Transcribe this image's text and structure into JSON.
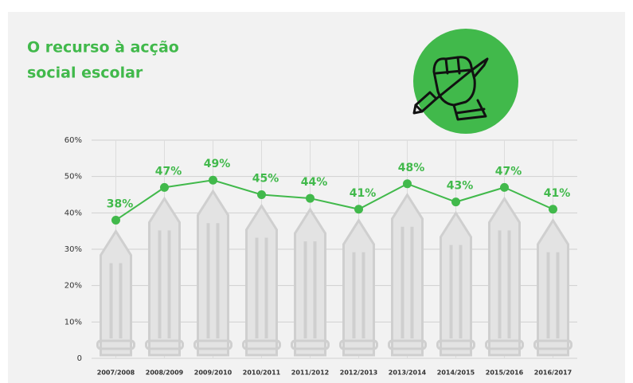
{
  "chart_data": {
    "type": "line",
    "title_lines": [
      "O recurso à acção",
      "social escolar"
    ],
    "categories": [
      "2007/2008",
      "2008/2009",
      "2009/2010",
      "2010/2011",
      "2011/2012",
      "2012/2013",
      "2013/2014",
      "2014/2015",
      "2015/2016",
      "2016/2017"
    ],
    "series": [
      {
        "name": "Recurso à acção social escolar",
        "color": "#41b94b",
        "values": [
          38,
          47,
          49,
          45,
          44,
          41,
          48,
          43,
          47,
          41
        ],
        "value_labels": [
          "38%",
          "47%",
          "49%",
          "45%",
          "44%",
          "41%",
          "48%",
          "43%",
          "47%",
          "41%"
        ]
      }
    ],
    "ylim": [
      0,
      60
    ],
    "yticks": [
      0,
      {
        "value": 10,
        "label": "10%"
      },
      {
        "value": 20,
        "label": "20%"
      },
      {
        "value": 30,
        "label": "30%"
      },
      {
        "value": 40,
        "label": "40%"
      },
      {
        "value": 50,
        "label": "50%"
      },
      {
        "value": 60,
        "label": "60%"
      }
    ],
    "grid": true
  }
}
